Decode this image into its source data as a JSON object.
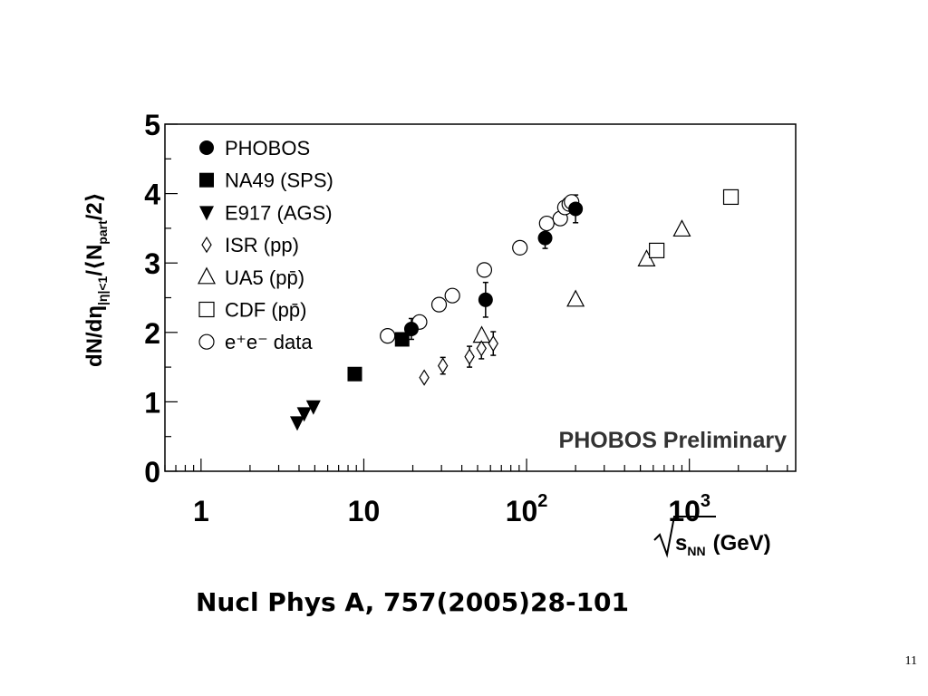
{
  "chart_data": {
    "type": "scatter",
    "x_scale": "log",
    "xlim": [
      0.6,
      4500
    ],
    "ylim": [
      0,
      5
    ],
    "x_ticks": [
      "1",
      "10",
      "10^2",
      "10^3"
    ],
    "y_ticks": [
      "0",
      "1",
      "2",
      "3",
      "4",
      "5"
    ],
    "xlabel": {
      "sqrt": "s",
      "subscript": "NN",
      "unit": "(GeV)"
    },
    "ylabel": {
      "main": "dN/dη",
      "eta_range": "|η|<1",
      "divider": "/⟨N",
      "part": "part",
      "tail": "/2⟩"
    },
    "legend_position": "top-left",
    "annotation": "PHOBOS Preliminary",
    "series": [
      {
        "name": "PHOBOS",
        "marker": "filled-circle",
        "points": [
          [
            19.6,
            2.05
          ],
          [
            56,
            2.47
          ],
          [
            130,
            3.36
          ],
          [
            200,
            3.78
          ]
        ],
        "errors": [
          0.15,
          0.25,
          0.15,
          0.2
        ]
      },
      {
        "name": "NA49 (SPS)",
        "marker": "filled-square",
        "points": [
          [
            8.8,
            1.4
          ],
          [
            17.2,
            1.9
          ]
        ],
        "errors": [
          0,
          0
        ]
      },
      {
        "name": "E917 (AGS)",
        "marker": "filled-triangle-down",
        "points": [
          [
            3.9,
            0.7
          ],
          [
            4.3,
            0.83
          ],
          [
            4.9,
            0.93
          ]
        ],
        "errors": [
          0,
          0,
          0
        ]
      },
      {
        "name": "ISR (pp)",
        "marker": "open-diamond",
        "points": [
          [
            23.5,
            1.35
          ],
          [
            30.6,
            1.52
          ],
          [
            44.6,
            1.65
          ],
          [
            52.8,
            1.77
          ],
          [
            62.4,
            1.84
          ]
        ],
        "errors": [
          0,
          0.12,
          0.15,
          0.15,
          0.17
        ]
      },
      {
        "name": "UA5 (pp̄)",
        "marker": "open-triangle-up",
        "points": [
          [
            53,
            1.95
          ],
          [
            200,
            2.47
          ],
          [
            546,
            3.05
          ],
          [
            900,
            3.48
          ]
        ],
        "errors": [
          0,
          0,
          0,
          0
        ]
      },
      {
        "name": "CDF (pp̄)",
        "marker": "open-square",
        "points": [
          [
            630,
            3.18
          ],
          [
            1800,
            3.95
          ]
        ],
        "errors": [
          0,
          0
        ]
      },
      {
        "name": "e⁺e⁻ data",
        "marker": "open-circle",
        "points": [
          [
            14,
            1.95
          ],
          [
            22,
            2.15
          ],
          [
            29,
            2.4
          ],
          [
            35,
            2.53
          ],
          [
            55,
            2.9
          ],
          [
            91,
            3.22
          ],
          [
            133,
            3.57
          ],
          [
            161,
            3.64
          ],
          [
            172,
            3.8
          ],
          [
            183,
            3.85
          ],
          [
            189,
            3.88
          ]
        ],
        "errors": []
      }
    ]
  },
  "citation": "Nucl Phys A, 757(2005)28-101",
  "page_number": "11"
}
